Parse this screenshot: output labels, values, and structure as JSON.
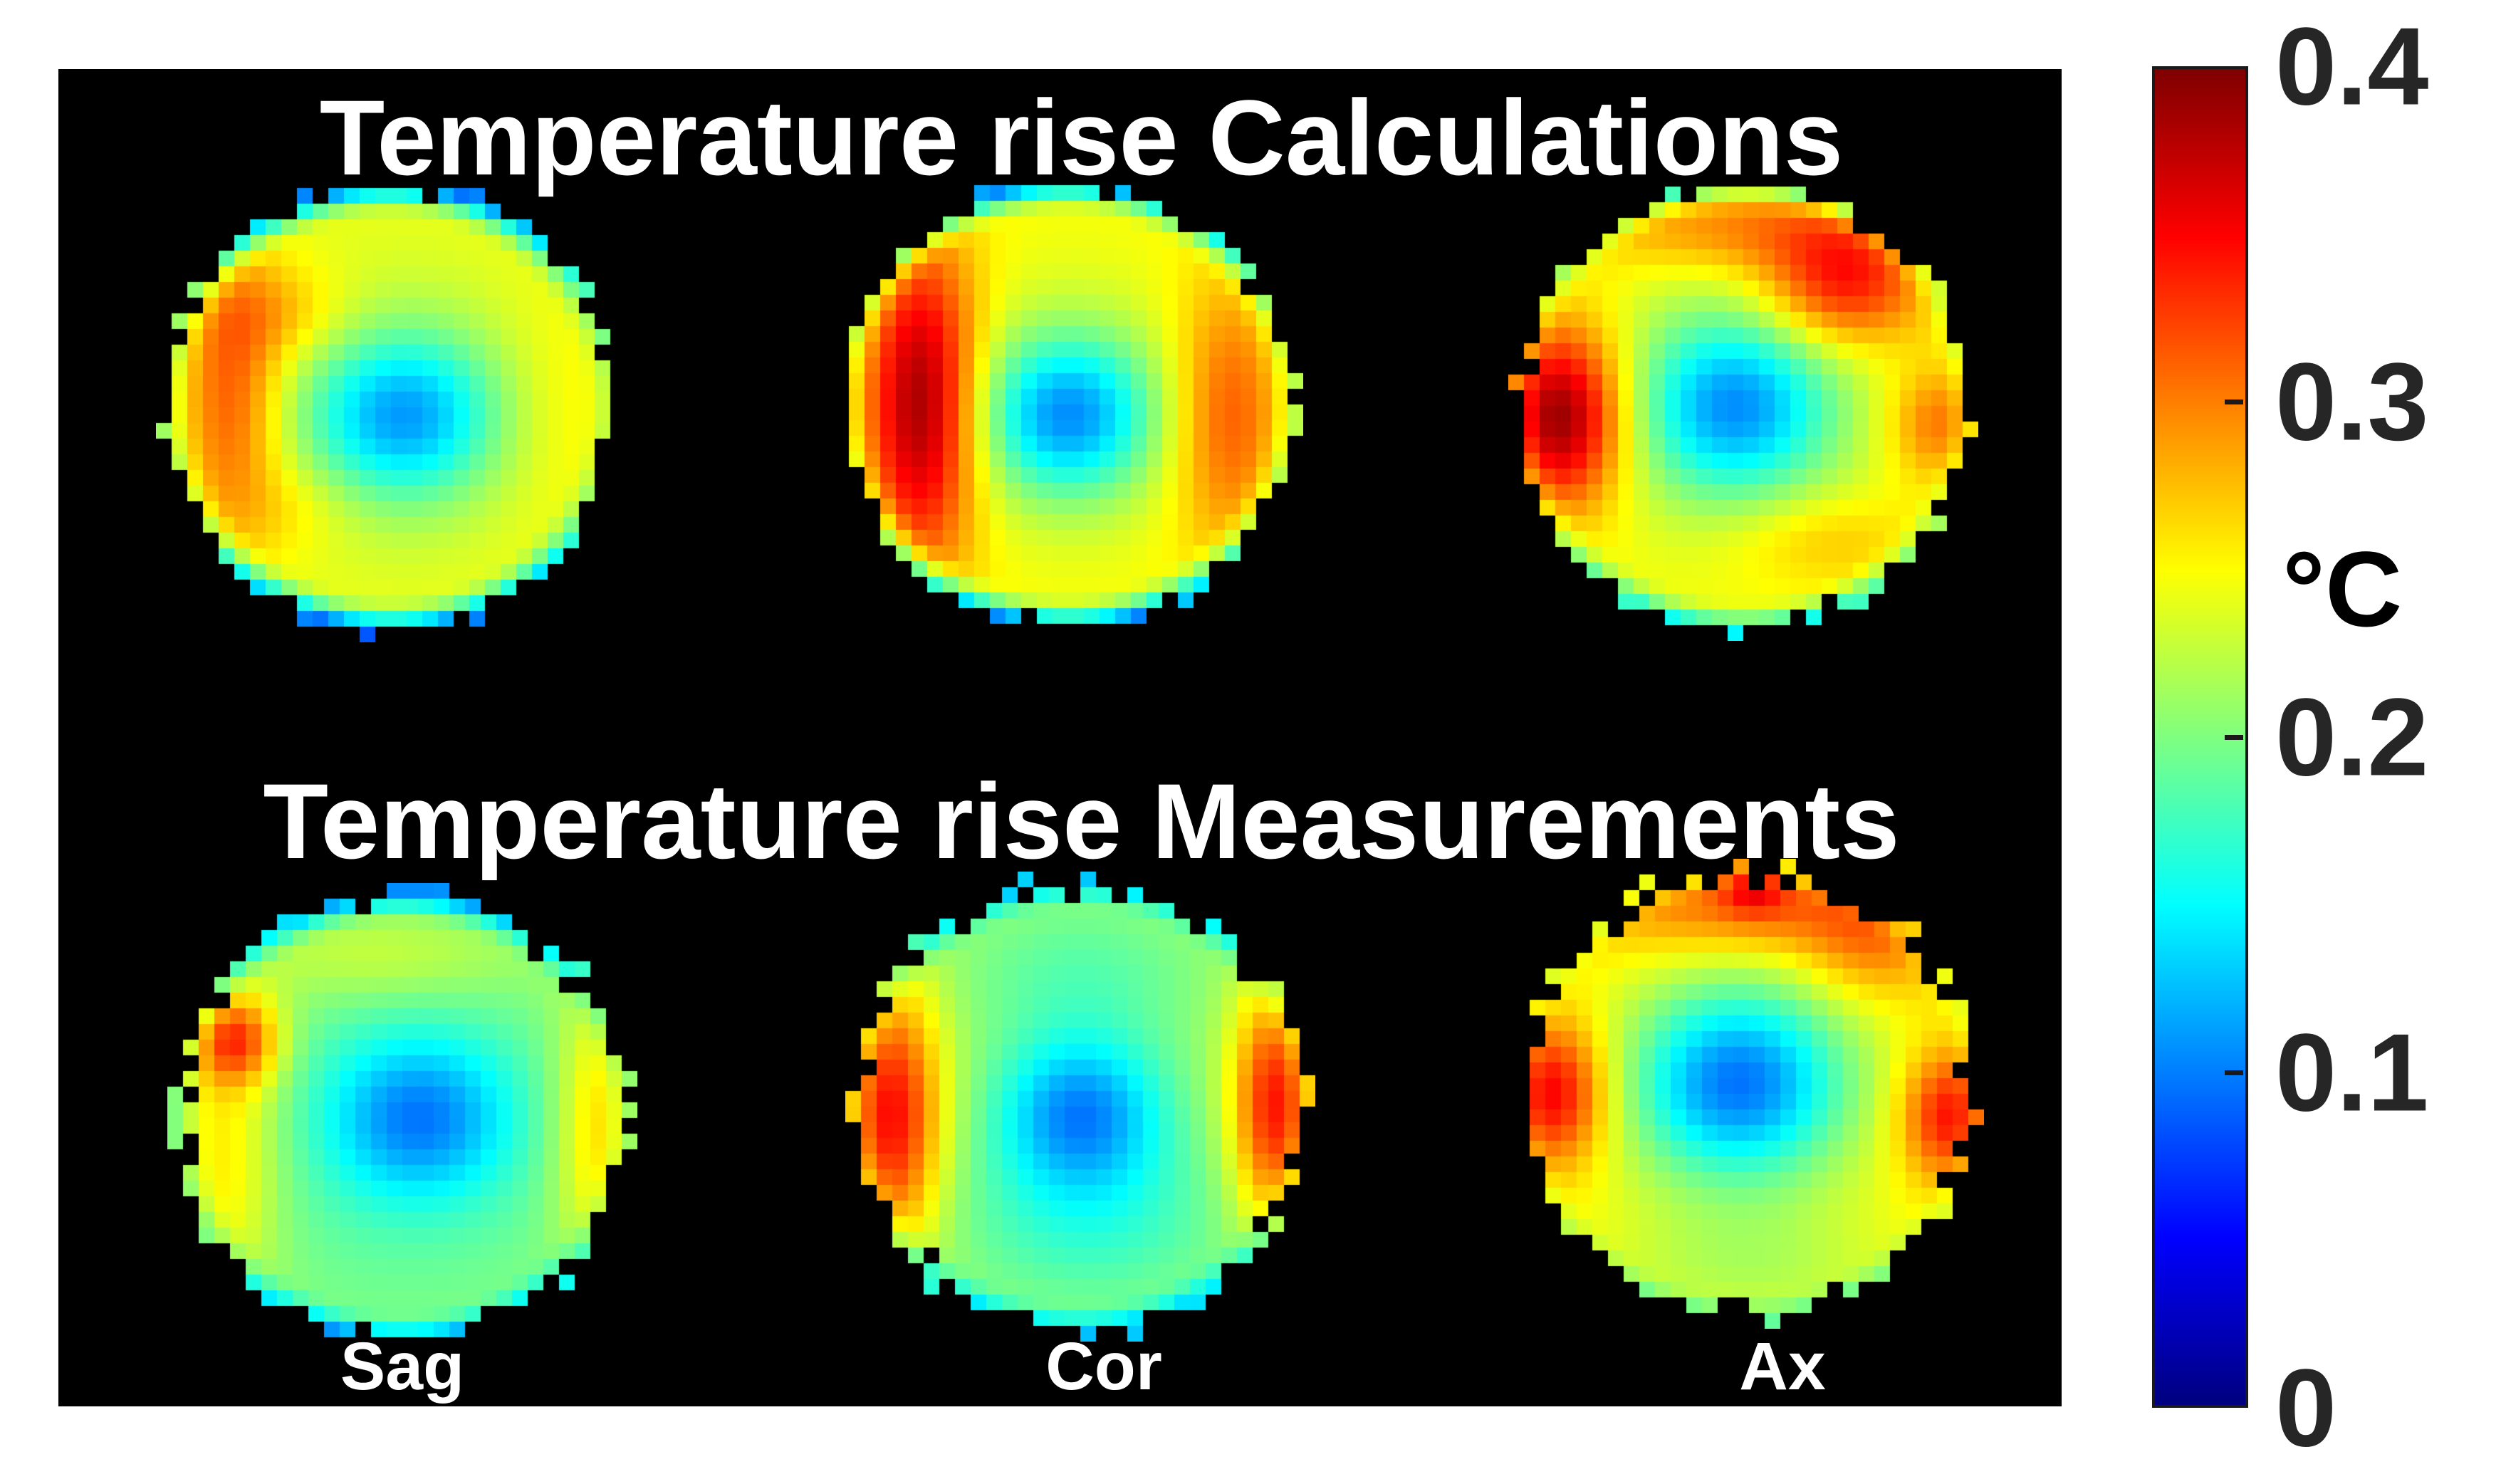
{
  "figure": {
    "titles": {
      "calculations": "Temperature rise Calculations",
      "measurements": "Temperature rise Measurements"
    },
    "column_labels": {
      "sag": "Sag",
      "cor": "Cor",
      "ax": "Ax"
    },
    "title_color": "#ffffff",
    "plot_background": "#000000",
    "page_background": "#ffffff"
  },
  "colorbar": {
    "unit_label": "°C",
    "min": 0,
    "max": 0.4,
    "colormap": "jet",
    "label_color": "#262626",
    "border_color": "#1a1a1a",
    "gradient_top_to_bottom": [
      "#7f0000",
      "#ff0000",
      "#ff9f00",
      "#ffff00",
      "#7fff7f",
      "#00ffff",
      "#005fff",
      "#0000ff",
      "#00008f"
    ],
    "ticks": [
      {
        "label": "0.4",
        "value": 0.4,
        "mark": false
      },
      {
        "label": "0.3",
        "value": 0.3,
        "mark": true
      },
      {
        "label": "0.2",
        "value": 0.2,
        "mark": true
      },
      {
        "label": "0.1",
        "value": 0.1,
        "mark": true
      },
      {
        "label": "0",
        "value": 0.0,
        "mark": false
      }
    ]
  },
  "chart_data": {
    "type": "heatmap",
    "unit": "°C",
    "vmin": 0,
    "vmax": 0.4,
    "colormap": "jet",
    "grid_cells": 30,
    "masked_background": "black (values outside circular phantom are masked)",
    "rows": [
      {
        "title": "Temperature rise Calculations",
        "panels": [
          "calc-sag",
          "calc-cor",
          "calc-ax"
        ]
      },
      {
        "title": "Temperature rise Measurements",
        "panels": [
          "meas-sag",
          "meas-cor",
          "meas-ax"
        ]
      }
    ],
    "panels": [
      {
        "id": "calc-sag",
        "row": "calculations",
        "plane": "Sag",
        "summary": "Cool blue center ~0.13, yellow-green body ~0.25, orange arc on left ~0.31, blue rim at top/bottom ~0.10",
        "center_min_C": 0.13,
        "peak_C": 0.31,
        "field": {
          "base": 0.245,
          "seed": 3,
          "jitter": 0.04,
          "spots": [
            {
              "x": 0.06,
              "y": 0.04,
              "sx": 0.3,
              "sy": 0.26,
              "amp": -0.115
            },
            {
              "x": 0.0,
              "y": 0.0,
              "sx": 0.55,
              "sy": 0.5,
              "amp": -0.02
            },
            {
              "x": -0.72,
              "y": -0.05,
              "sx": 0.16,
              "sy": 0.45,
              "amp": 0.075
            },
            {
              "x": -0.5,
              "y": -0.42,
              "sx": 0.22,
              "sy": 0.16,
              "amp": 0.035
            },
            {
              "x": -0.45,
              "y": 0.45,
              "sx": 0.2,
              "sy": 0.15,
              "amp": 0.02
            },
            {
              "x": 0.75,
              "y": 0.0,
              "sx": 0.25,
              "sy": 0.35,
              "amp": 0.015
            }
          ],
          "edge": {
            "amp": -0.16,
            "width": 0.16,
            "vpow": 2.2
          }
        }
      },
      {
        "id": "calc-cor",
        "row": "calculations",
        "plane": "Cor",
        "summary": "Dark-red vertical band on left ~0.39, orange band on right ~0.32, cool blue center ~0.12, blue rim top/bottom",
        "center_min_C": 0.12,
        "peak_C": 0.39,
        "field": {
          "base": 0.25,
          "seed": 11,
          "jitter": 0.04,
          "spots": [
            {
              "x": 0.0,
              "y": 0.05,
              "sx": 0.27,
              "sy": 0.25,
              "amp": -0.125
            },
            {
              "x": 0.0,
              "y": 0.0,
              "sx": 0.5,
              "sy": 0.45,
              "amp": -0.02
            },
            {
              "x": -0.66,
              "y": 0.0,
              "sx": 0.18,
              "sy": 0.5,
              "amp": 0.145
            },
            {
              "x": 0.72,
              "y": 0.05,
              "sx": 0.18,
              "sy": 0.42,
              "amp": 0.07
            }
          ],
          "edge": {
            "amp": -0.16,
            "width": 0.16,
            "vpow": 2.2
          }
        }
      },
      {
        "id": "calc-ax",
        "row": "calculations",
        "plane": "Ax",
        "summary": "Dark-red hotspot left ~0.40, red blob top-right ~0.35, orange top band, small orange spot right ~0.31, cool cyan-blue center ~0.13, yellow body",
        "center_min_C": 0.13,
        "peak_C": 0.4,
        "field": {
          "base": 0.25,
          "seed": 19,
          "jitter": 0.045,
          "spots": [
            {
              "x": -0.04,
              "y": 0.0,
              "sx": 0.3,
              "sy": 0.28,
              "amp": -0.12
            },
            {
              "x": 0.0,
              "y": 0.0,
              "sx": 0.55,
              "sy": 0.5,
              "amp": -0.025
            },
            {
              "x": -0.82,
              "y": 0.05,
              "sx": 0.2,
              "sy": 0.28,
              "amp": 0.15
            },
            {
              "x": 0.45,
              "y": -0.55,
              "sx": 0.26,
              "sy": 0.2,
              "amp": 0.1
            },
            {
              "x": 0.0,
              "y": -0.8,
              "sx": 0.5,
              "sy": 0.14,
              "amp": 0.05
            },
            {
              "x": 0.88,
              "y": 0.08,
              "sx": 0.16,
              "sy": 0.18,
              "amp": 0.06
            },
            {
              "x": 0.35,
              "y": 0.6,
              "sx": 0.3,
              "sy": 0.15,
              "amp": 0.03
            }
          ],
          "edge": {
            "amp": -0.1,
            "width": 0.14,
            "vpow": 2.5
          }
        }
      },
      {
        "id": "meas-sag",
        "row": "measurements",
        "plane": "Sag",
        "summary": "Cyan-green body ~0.20, blue center ~0.10, yellow band left with red-orange spot upper-left ~0.33, yellow band right edge, blue tabs bottom",
        "center_min_C": 0.1,
        "peak_C": 0.33,
        "field": {
          "base": 0.205,
          "seed": 5,
          "jitter": 0.06,
          "spots": [
            {
              "x": 0.08,
              "y": 0.0,
              "sx": 0.28,
              "sy": 0.25,
              "amp": -0.085
            },
            {
              "x": 0.0,
              "y": 0.05,
              "sx": 0.6,
              "sy": 0.55,
              "amp": -0.025
            },
            {
              "x": -0.1,
              "y": -0.72,
              "sx": 0.45,
              "sy": 0.15,
              "amp": 0.03
            },
            {
              "x": -0.8,
              "y": 0.15,
              "sx": 0.18,
              "sy": 0.5,
              "amp": 0.06
            },
            {
              "x": -0.75,
              "y": -0.35,
              "sx": 0.14,
              "sy": 0.14,
              "amp": 0.105
            },
            {
              "x": 0.88,
              "y": 0.05,
              "sx": 0.14,
              "sy": 0.45,
              "amp": 0.065
            }
          ],
          "edge": {
            "amp": -0.1,
            "width": 0.14,
            "vpow": 2.5
          }
        }
      },
      {
        "id": "meas-cor",
        "row": "measurements",
        "plane": "Cor",
        "summary": "Red bands on both left and right edges ~0.35, orange-yellow ring, blue center ~0.11, cyan regions top and bottom",
        "center_min_C": 0.11,
        "peak_C": 0.35,
        "field": {
          "base": 0.215,
          "seed": 13,
          "jitter": 0.06,
          "spots": [
            {
              "x": 0.0,
              "y": 0.02,
              "sx": 0.26,
              "sy": 0.24,
              "amp": -0.105
            },
            {
              "x": 0.05,
              "y": 0.5,
              "sx": 0.45,
              "sy": 0.3,
              "amp": -0.045
            },
            {
              "x": 0.0,
              "y": -0.6,
              "sx": 0.4,
              "sy": 0.25,
              "amp": -0.03
            },
            {
              "x": -0.85,
              "y": 0.05,
              "sx": 0.16,
              "sy": 0.42,
              "amp": 0.135
            },
            {
              "x": 0.88,
              "y": 0.0,
              "sx": 0.14,
              "sy": 0.38,
              "amp": 0.13
            }
          ],
          "edge": {
            "amp": -0.08,
            "width": 0.14,
            "vpow": 2.0
          }
        }
      },
      {
        "id": "meas-ax",
        "row": "measurements",
        "plane": "Ax",
        "summary": "Orange-yellow body ~0.26, large cyan-blue cold center ~0.12, red spots at left and right edges ~0.36, orange band along top with red spot top-center",
        "center_min_C": 0.12,
        "peak_C": 0.36,
        "field": {
          "base": 0.26,
          "seed": 23,
          "jitter": 0.06,
          "spots": [
            {
              "x": -0.05,
              "y": -0.05,
              "sx": 0.33,
              "sy": 0.3,
              "amp": -0.135
            },
            {
              "x": 0.0,
              "y": 0.0,
              "sx": 0.6,
              "sy": 0.55,
              "amp": -0.03
            },
            {
              "x": 0.0,
              "y": 0.8,
              "sx": 0.5,
              "sy": 0.2,
              "amp": -0.03
            },
            {
              "x": -0.88,
              "y": 0.0,
              "sx": 0.17,
              "sy": 0.22,
              "amp": 0.105
            },
            {
              "x": 0.9,
              "y": 0.1,
              "sx": 0.15,
              "sy": 0.2,
              "amp": 0.095
            },
            {
              "x": 0.05,
              "y": -0.85,
              "sx": 0.55,
              "sy": 0.16,
              "amp": 0.06
            },
            {
              "x": 0.02,
              "y": -0.97,
              "sx": 0.1,
              "sy": 0.1,
              "amp": 0.07
            },
            {
              "x": 0.55,
              "y": -0.65,
              "sx": 0.22,
              "sy": 0.18,
              "amp": 0.04
            }
          ],
          "edge": {
            "amp": -0.05,
            "width": 0.12,
            "vpow": 2.0
          }
        }
      }
    ]
  }
}
